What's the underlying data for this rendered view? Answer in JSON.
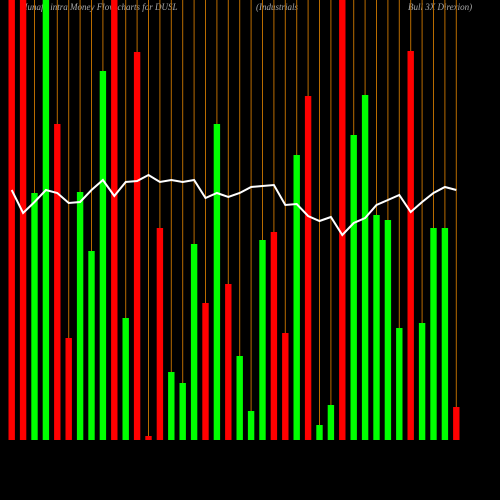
{
  "chart_data": {
    "type": "bar",
    "title": [
      "Munafa intra Money Flow charts for DUSL",
      "(Industrials",
      "Bull 3X Direxion)"
    ],
    "categories": [
      null,
      null,
      null,
      null,
      null,
      null,
      null,
      null,
      null,
      null,
      null,
      null,
      null,
      null,
      null,
      null,
      null,
      null,
      null,
      null,
      null,
      null,
      null,
      null,
      null,
      null,
      null,
      null,
      null,
      null,
      null,
      null,
      null,
      null,
      null,
      null,
      null,
      null,
      null,
      null
    ],
    "series": [
      {
        "name": "flow",
        "values": [
          440,
          440,
          247,
          440,
          316,
          102,
          248,
          189,
          369,
          440,
          122,
          388,
          4,
          212,
          68,
          57,
          196,
          137,
          316,
          156,
          84,
          29,
          200,
          208,
          107,
          285,
          344,
          15,
          35,
          440,
          305,
          345,
          225,
          220,
          112,
          389,
          117,
          212,
          212,
          33
        ],
        "colors": [
          "#ff0000",
          "#ff0000",
          "#00ff00",
          "#00ff00",
          "#ff0000",
          "#ff0000",
          "#00ff00",
          "#00ff00",
          "#00ff00",
          "#ff0000",
          "#00ff00",
          "#ff0000",
          "#ff0000",
          "#ff0000",
          "#00ff00",
          "#00ff00",
          "#00ff00",
          "#ff0000",
          "#00ff00",
          "#ff0000",
          "#00ff00",
          "#00ff00",
          "#00ff00",
          "#ff0000",
          "#ff0000",
          "#00ff00",
          "#ff0000",
          "#00ff00",
          "#00ff00",
          "#ff0000",
          "#00ff00",
          "#00ff00",
          "#00ff00",
          "#00ff00",
          "#00ff00",
          "#ff0000",
          "#00ff00",
          "#00ff00",
          "#00ff00",
          "#ff0000"
        ]
      },
      {
        "name": "price",
        "type": "line",
        "color": "#ffffff",
        "values": [
          250,
          227,
          238,
          250,
          247,
          237,
          238,
          250,
          260,
          244,
          258,
          259,
          265,
          258,
          260,
          258,
          260,
          242,
          247,
          243,
          247,
          253,
          254,
          255,
          235,
          236,
          224,
          219,
          223,
          205,
          217,
          222,
          235,
          240,
          245,
          228,
          238,
          247,
          253,
          250
        ]
      }
    ],
    "ylim": [
      0,
      440
    ],
    "grid_color": "#b86b00"
  }
}
